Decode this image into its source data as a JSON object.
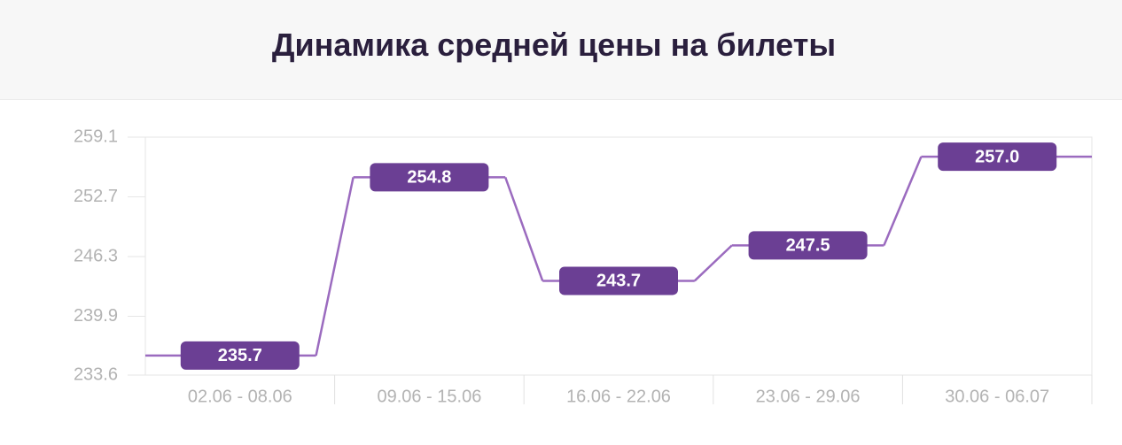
{
  "chart_data": {
    "type": "step-line",
    "title": "Динамика средней цены на билеты",
    "categories": [
      "02.06 - 08.06",
      "09.06 - 15.06",
      "16.06 - 22.06",
      "23.06 - 29.06",
      "30.06 - 06.07"
    ],
    "values": [
      235.7,
      254.8,
      243.7,
      247.5,
      257.0
    ],
    "value_labels": [
      "235.7",
      "254.8",
      "243.7",
      "247.5",
      "257.0"
    ],
    "color": "#9b6bbf",
    "label_color": "#6b3f94",
    "ylim": [
      233.6,
      259.1
    ],
    "yticks": [
      233.6,
      239.9,
      246.3,
      252.7,
      259.1
    ]
  }
}
